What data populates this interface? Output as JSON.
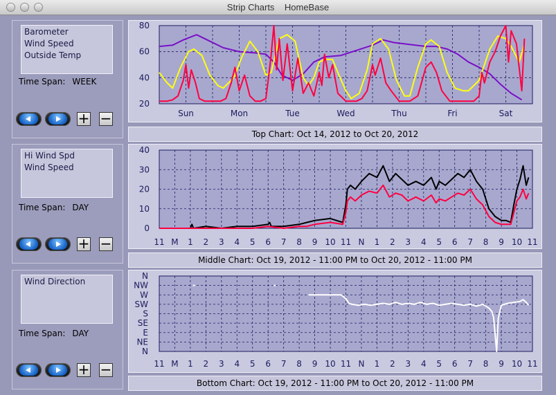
{
  "window": {
    "title": "Strip Charts    HomeBase"
  },
  "panels": [
    {
      "series_lines": [
        "Barometer",
        "Wind Speed",
        "Outside Temp"
      ],
      "time_span_label": "Time Span:",
      "time_span_value": "WEEK",
      "caption": "Top Chart:  Oct 14, 2012  to  Oct 20, 2012"
    },
    {
      "series_lines": [
        "Hi Wind Spd",
        "Wind Speed"
      ],
      "time_span_label": "Time Span:",
      "time_span_value": "DAY",
      "caption": "Middle Chart:  Oct 19, 2012 - 11:00 PM  to  Oct 20, 2012 - 11:00 PM"
    },
    {
      "series_lines": [
        "Wind Direction"
      ],
      "time_span_label": "Time Span:",
      "time_span_value": "DAY",
      "caption": "Bottom Chart:  Oct 19, 2012 - 11:00 PM  to  Oct 20, 2012 - 11:00 PM"
    }
  ],
  "buttons": {
    "plus": "+",
    "minus": "−"
  },
  "chart_data": [
    {
      "type": "line",
      "categories": [
        "Sun",
        "Mon",
        "Tue",
        "Wed",
        "Thu",
        "Fri",
        "Sat"
      ],
      "ylim": [
        20,
        80
      ],
      "yticks": [
        "80",
        "60",
        "40",
        "20"
      ],
      "series": [
        {
          "name": "Barometer",
          "color": "#7a10c8",
          "x": [
            0,
            0.25,
            0.45,
            0.7,
            0.9,
            1.2,
            1.5,
            1.8,
            2.0,
            2.15,
            2.3,
            2.5,
            2.7,
            2.9,
            3.1,
            3.4,
            3.7,
            4.0,
            4.2,
            4.4,
            4.6,
            4.8,
            5.0,
            5.2,
            5.4,
            5.6,
            5.8,
            6.0,
            6.2,
            6.4,
            6.6,
            6.8
          ],
          "y": [
            64,
            65,
            69,
            73,
            69,
            63,
            60,
            59,
            58,
            52,
            42,
            38,
            43,
            52,
            56,
            57,
            61,
            65,
            69,
            67,
            66,
            65,
            64,
            64,
            62,
            58,
            52,
            48,
            43,
            35,
            28,
            23
          ]
        },
        {
          "name": "Outside Temp",
          "color": "#ffff10",
          "x": [
            0,
            0.15,
            0.25,
            0.4,
            0.55,
            0.65,
            0.8,
            0.95,
            1.1,
            1.2,
            1.4,
            1.55,
            1.7,
            1.85,
            2.0,
            2.1,
            2.25,
            2.4,
            2.55,
            2.7,
            2.8,
            2.9,
            3.0,
            3.1,
            3.25,
            3.35,
            3.5,
            3.6,
            3.75,
            3.9,
            4.0,
            4.15,
            4.3,
            4.45,
            4.6,
            4.7,
            4.85,
            5.0,
            5.1,
            5.25,
            5.4,
            5.55,
            5.7,
            5.8,
            6.0,
            6.2,
            6.35,
            6.5,
            6.6,
            6.75,
            6.85
          ],
          "y": [
            44,
            36,
            32,
            48,
            60,
            62,
            57,
            42,
            34,
            32,
            40,
            56,
            68,
            60,
            42,
            44,
            70,
            73,
            68,
            40,
            34,
            40,
            52,
            54,
            54,
            44,
            30,
            24,
            28,
            46,
            66,
            70,
            62,
            38,
            26,
            26,
            48,
            66,
            69,
            64,
            44,
            32,
            30,
            30,
            38,
            62,
            72,
            70,
            64,
            52,
            66
          ]
        },
        {
          "name": "Wind Speed",
          "color": "#ff0040",
          "x": [
            0,
            0.15,
            0.25,
            0.35,
            0.45,
            0.5,
            0.55,
            0.6,
            0.68,
            0.75,
            0.85,
            1.0,
            1.15,
            1.25,
            1.35,
            1.42,
            1.5,
            1.6,
            1.7,
            1.8,
            1.9,
            2.0,
            2.05,
            2.1,
            2.15,
            2.2,
            2.25,
            2.32,
            2.4,
            2.5,
            2.6,
            2.7,
            2.8,
            2.9,
            3.0,
            3.05,
            3.1,
            3.18,
            3.25,
            3.35,
            3.5,
            3.7,
            3.8,
            3.9,
            4.0,
            4.05,
            4.15,
            4.25,
            4.35,
            4.5,
            4.7,
            4.85,
            5.0,
            5.1,
            5.2,
            5.3,
            5.45,
            5.7,
            5.9,
            6.0,
            6.05,
            6.1,
            6.2,
            6.3,
            6.4,
            6.5,
            6.55,
            6.6,
            6.7,
            6.8,
            6.85
          ],
          "y": [
            22,
            22,
            23,
            26,
            38,
            50,
            32,
            46,
            36,
            24,
            22,
            22,
            22,
            24,
            36,
            48,
            30,
            42,
            26,
            22,
            22,
            24,
            40,
            58,
            80,
            46,
            70,
            38,
            66,
            30,
            55,
            28,
            36,
            26,
            44,
            34,
            58,
            40,
            50,
            28,
            22,
            22,
            24,
            30,
            50,
            42,
            55,
            36,
            30,
            22,
            22,
            26,
            48,
            52,
            44,
            30,
            22,
            22,
            22,
            26,
            44,
            36,
            52,
            60,
            72,
            80,
            52,
            76,
            66,
            30,
            70
          ]
        }
      ]
    },
    {
      "type": "line",
      "categories": [
        "11",
        "M",
        "1",
        "2",
        "3",
        "4",
        "5",
        "6",
        "7",
        "8",
        "9",
        "10",
        "11",
        "N",
        "1",
        "2",
        "3",
        "4",
        "5",
        "6",
        "7",
        "8",
        "9",
        "10",
        "11"
      ],
      "ylim": [
        0,
        40
      ],
      "yticks": [
        "40",
        "30",
        "20",
        "10",
        "0"
      ],
      "series": [
        {
          "name": "Hi Wind Spd",
          "color": "#000000",
          "x": [
            0,
            2,
            2.1,
            2.2,
            3,
            4,
            5,
            6,
            7,
            7.1,
            7.2,
            8,
            9,
            9.5,
            10,
            11,
            11.8,
            12.0,
            12.1,
            12.3,
            12.6,
            13,
            13.5,
            14,
            14.4,
            14.8,
            15.2,
            15.6,
            16,
            16.5,
            17,
            17.5,
            17.8,
            18,
            18.4,
            18.8,
            19.2,
            19.6,
            20,
            20.4,
            20.8,
            21.2,
            21.6,
            22,
            22.3,
            22.6,
            22.8,
            23,
            23.2,
            23.4,
            23.6,
            23.75
          ],
          "y": [
            0,
            0,
            2,
            0,
            1,
            0,
            1,
            1,
            2,
            3,
            1,
            1,
            2,
            3,
            4,
            5,
            3,
            12,
            20,
            22,
            20,
            24,
            28,
            26,
            32,
            24,
            28,
            25,
            22,
            24,
            22,
            26,
            20,
            24,
            22,
            25,
            28,
            26,
            30,
            24,
            20,
            10,
            6,
            4,
            4,
            3,
            12,
            20,
            25,
            32,
            22,
            26
          ]
        },
        {
          "name": "Wind Speed",
          "color": "#ff0040",
          "x": [
            0,
            2,
            3,
            4,
            5,
            6,
            7,
            8,
            9,
            9.5,
            10,
            11,
            11.8,
            12.0,
            12.1,
            12.3,
            12.6,
            13,
            13.5,
            14,
            14.4,
            14.8,
            15.2,
            15.6,
            16,
            16.5,
            17,
            17.5,
            17.8,
            18,
            18.4,
            18.8,
            19.2,
            19.6,
            20,
            20.4,
            20.8,
            21.2,
            21.6,
            22,
            22.3,
            22.6,
            22.8,
            23,
            23.2,
            23.4,
            23.6,
            23.75
          ],
          "y": [
            0,
            0,
            0,
            0,
            0,
            0,
            1,
            0,
            1,
            1,
            2,
            3,
            2,
            8,
            14,
            16,
            14,
            17,
            19,
            18,
            22,
            16,
            18,
            17,
            14,
            16,
            14,
            17,
            13,
            15,
            14,
            16,
            18,
            17,
            20,
            15,
            12,
            6,
            3,
            2,
            2,
            2,
            8,
            14,
            16,
            20,
            15,
            18
          ]
        }
      ]
    },
    {
      "type": "line",
      "categories": [
        "11",
        "M",
        "1",
        "2",
        "3",
        "4",
        "5",
        "6",
        "7",
        "8",
        "9",
        "10",
        "11",
        "N",
        "1",
        "2",
        "3",
        "4",
        "5",
        "6",
        "7",
        "8",
        "9",
        "10",
        "11"
      ],
      "ylim": [
        0,
        8
      ],
      "yticks": [
        "N",
        "NW",
        "W",
        "SW",
        "S",
        "SE",
        "E",
        "NE",
        "N"
      ],
      "series": [
        {
          "name": "Wind Direction",
          "color": "#ffffff",
          "x": [
            0,
            2,
            2.2,
            2.3,
            4,
            5,
            7.4,
            7.5,
            9.6,
            10,
            10.5,
            11,
            11.5,
            11.7,
            12.0,
            12.2,
            12.4,
            12.8,
            13.2,
            13.6,
            14,
            14.4,
            14.8,
            15.2,
            15.6,
            16,
            16.4,
            16.8,
            17.2,
            17.6,
            18,
            18.4,
            18.8,
            19.2,
            19.6,
            20,
            20.4,
            20.8,
            21.2,
            21.4,
            21.5,
            21.6,
            21.7,
            21.8,
            22,
            22.4,
            22.8,
            23.2,
            23.4,
            23.6,
            23.75
          ],
          "y": [
            null,
            null,
            7.0,
            null,
            null,
            null,
            7.0,
            null,
            6.0,
            6.0,
            6.0,
            6.0,
            6.0,
            6.0,
            5.6,
            5.1,
            5.0,
            4.9,
            5.0,
            4.9,
            5.0,
            5.1,
            5.0,
            5.2,
            5.0,
            5.1,
            5.0,
            5.2,
            5.0,
            5.1,
            4.9,
            5.0,
            5.1,
            5.0,
            4.9,
            5.0,
            4.8,
            5.0,
            4.6,
            4.2,
            3.6,
            1.8,
            0,
            3.5,
            4.9,
            5.1,
            5.2,
            5.3,
            5.5,
            5.2,
            4.9
          ]
        }
      ]
    }
  ]
}
